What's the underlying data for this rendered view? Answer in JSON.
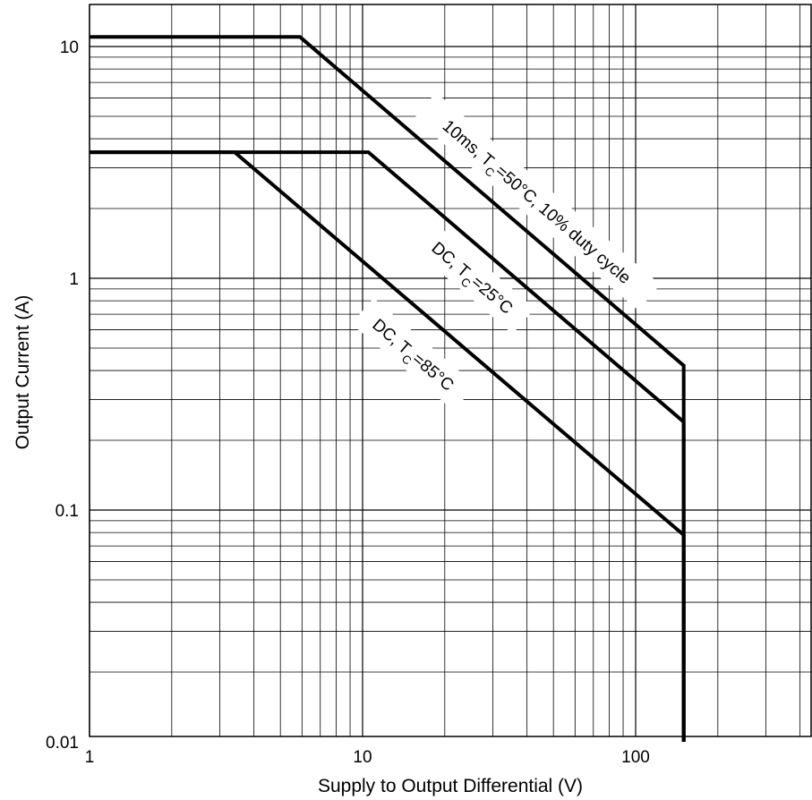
{
  "chart_data": {
    "type": "line",
    "title": "",
    "xlabel": "Supply to Output Differential (V)",
    "ylabel": "Output Current (A)",
    "x_scale": "log",
    "y_scale": "log",
    "xlim": [
      1,
      500
    ],
    "ylim": [
      0.01,
      14
    ],
    "grid": true,
    "x_ticks": [
      1,
      10,
      100
    ],
    "x_tick_labels": [
      "1",
      "10",
      "100"
    ],
    "y_ticks": [
      0.01,
      0.1,
      1,
      10
    ],
    "y_tick_labels": [
      "0.01",
      "0.1",
      "1",
      "10"
    ],
    "series": [
      {
        "key": "pulse",
        "label_parts": [
          "10ms, T",
          "C",
          "=50°C, 10% duty cycle"
        ],
        "x": [
          1,
          5.9,
          150,
          150
        ],
        "y": [
          11,
          11,
          0.42,
          0.01
        ]
      },
      {
        "key": "dc25",
        "label_parts": [
          "DC, T",
          "C",
          "=25°C"
        ],
        "x": [
          1,
          10.5,
          150,
          150
        ],
        "y": [
          3.5,
          3.5,
          0.24,
          0.01
        ]
      },
      {
        "key": "dc85",
        "label_parts": [
          "DC, T",
          "C",
          "=85°C"
        ],
        "x": [
          1,
          3.4,
          150,
          150
        ],
        "y": [
          3.5,
          3.5,
          0.078,
          0.01
        ]
      }
    ]
  }
}
